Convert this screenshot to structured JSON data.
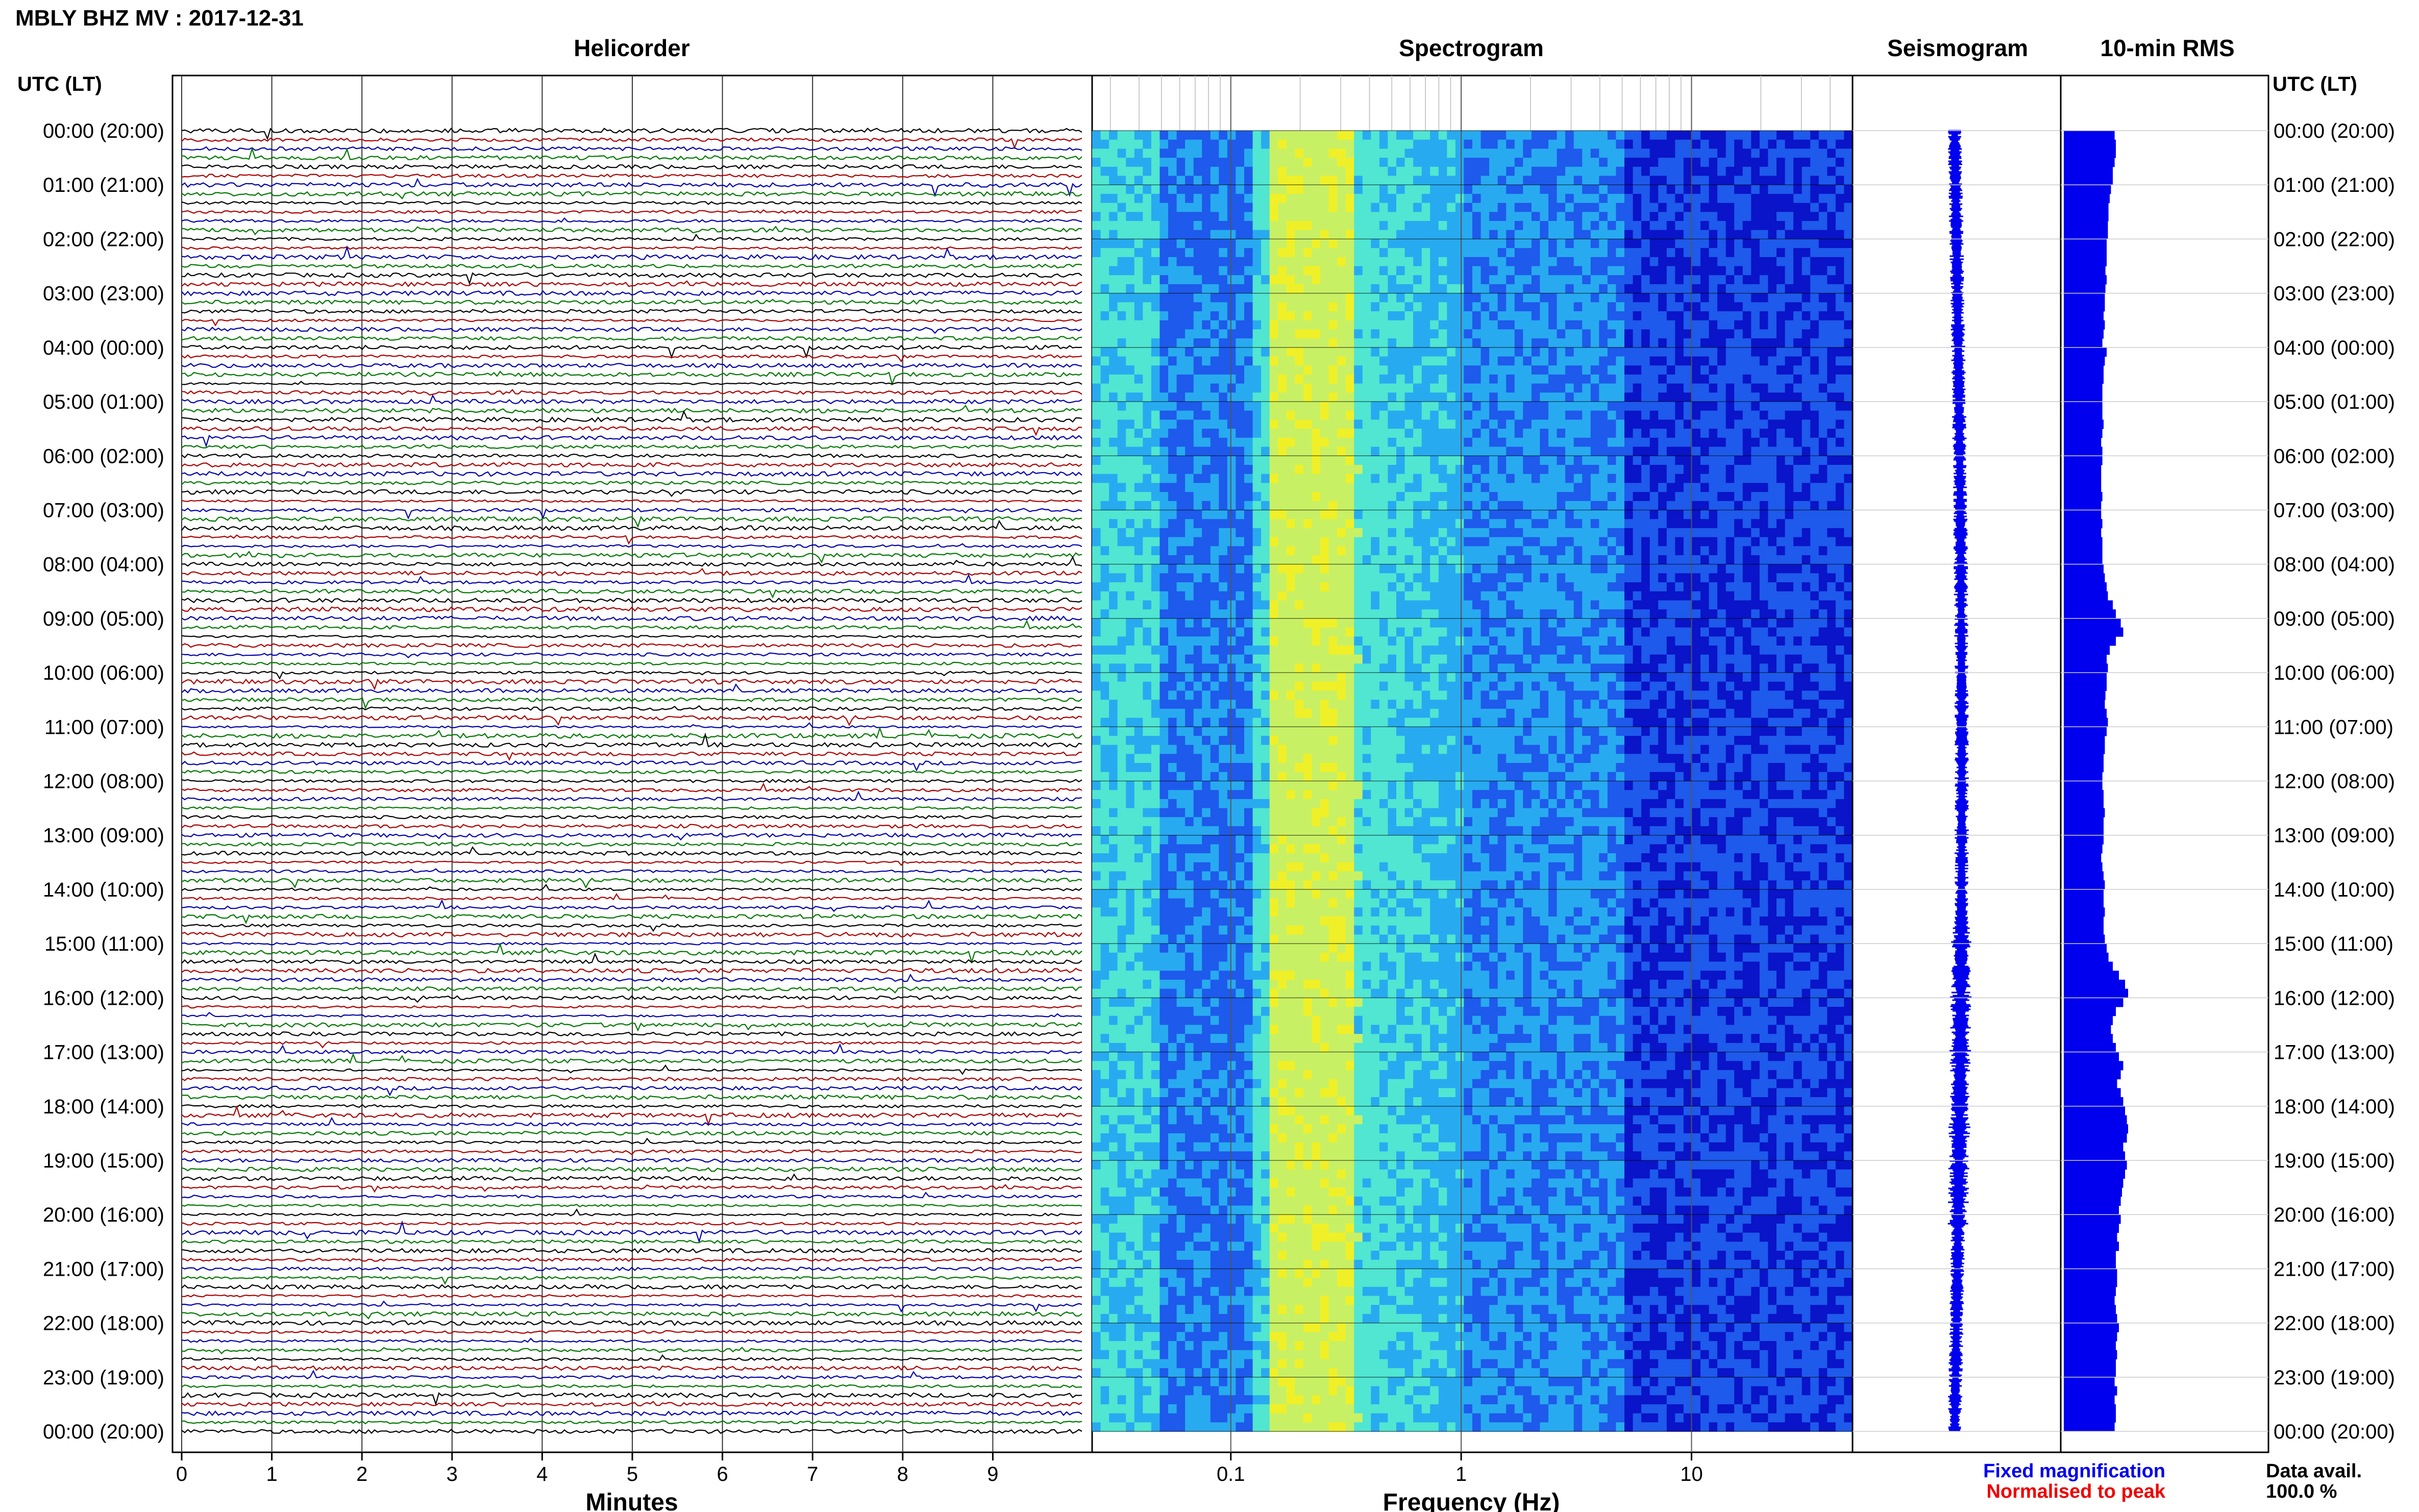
{
  "page": {
    "title": "MBLY BHZ MV : 2017-12-31",
    "utc_label_left": "UTC (LT)",
    "utc_label_right": "UTC (LT)",
    "legend_fixed": "Fixed magnification",
    "legend_normalised": "Normalised to peak",
    "data_avail_label": "Data avail.",
    "data_avail_value": "100.0 %",
    "colors": {
      "fixed": "#0000ee",
      "normalised": "#ee0000",
      "trace_cycle": [
        "#000000",
        "#aa0000",
        "#0000aa",
        "#007700"
      ]
    }
  },
  "chart_data": [
    {
      "type": "line",
      "title": "Helicorder",
      "xlabel": "Minutes",
      "x_ticks": [
        0,
        1,
        2,
        3,
        4,
        5,
        6,
        7,
        8,
        9
      ],
      "xlim": [
        0,
        10
      ],
      "time_labels": [
        "00:00 (20:00)",
        "01:00 (21:00)",
        "02:00 (22:00)",
        "03:00 (23:00)",
        "04:00 (00:00)",
        "05:00 (01:00)",
        "06:00 (02:00)",
        "07:00 (03:00)",
        "08:00 (04:00)",
        "09:00 (05:00)",
        "10:00 (06:00)",
        "11:00 (07:00)",
        "12:00 (08:00)",
        "13:00 (09:00)",
        "14:00 (10:00)",
        "15:00 (11:00)",
        "16:00 (12:00)",
        "17:00 (13:00)",
        "18:00 (14:00)",
        "19:00 (15:00)",
        "20:00 (16:00)",
        "21:00 (17:00)",
        "22:00 (18:00)",
        "23:00 (19:00)",
        "00:00 (20:00)"
      ],
      "traces_per_hour": 6,
      "grid": true
    },
    {
      "type": "heatmap",
      "title": "Spectrogram",
      "xlabel": "Frequency (Hz)",
      "x_scale": "log",
      "x_ticks": [
        0.1,
        1,
        10
      ],
      "x_tick_labels": [
        "0.1",
        "1",
        "10"
      ],
      "xlim": [
        0.025,
        50
      ],
      "dominant_band_hz": [
        0.15,
        0.35
      ],
      "colormap": [
        "#0a14c8",
        "#1e5aeb",
        "#28aaf0",
        "#50e6d2",
        "#c8f064",
        "#f0f028"
      ]
    },
    {
      "type": "line",
      "title": "Seismogram",
      "grid": true
    },
    {
      "type": "bar",
      "title": "10-min RMS",
      "orientation": "horizontal",
      "values": [
        0.58,
        0.6,
        0.6,
        0.58,
        0.55,
        0.55,
        0.52,
        0.5,
        0.48,
        0.48,
        0.47,
        0.47,
        0.45,
        0.45,
        0.45,
        0.43,
        0.45,
        0.43,
        0.42,
        0.42,
        0.4,
        0.42,
        0.4,
        0.38,
        0.45,
        0.42,
        0.4,
        0.4,
        0.38,
        0.38,
        0.38,
        0.38,
        0.4,
        0.38,
        0.36,
        0.38,
        0.38,
        0.36,
        0.36,
        0.36,
        0.38,
        0.36,
        0.36,
        0.38,
        0.36,
        0.38,
        0.38,
        0.38,
        0.4,
        0.42,
        0.45,
        0.47,
        0.55,
        0.6,
        0.68,
        0.72,
        0.6,
        0.5,
        0.45,
        0.47,
        0.45,
        0.45,
        0.43,
        0.42,
        0.45,
        0.47,
        0.45,
        0.42,
        0.42,
        0.4,
        0.4,
        0.38,
        0.38,
        0.4,
        0.4,
        0.42,
        0.4,
        0.4,
        0.4,
        0.38,
        0.36,
        0.38,
        0.4,
        0.42,
        0.4,
        0.4,
        0.42,
        0.4,
        0.4,
        0.42,
        0.45,
        0.48,
        0.55,
        0.65,
        0.75,
        0.8,
        0.72,
        0.6,
        0.55,
        0.52,
        0.55,
        0.6,
        0.65,
        0.72,
        0.68,
        0.62,
        0.68,
        0.72,
        0.75,
        0.78,
        0.8,
        0.78,
        0.72,
        0.75,
        0.78,
        0.75,
        0.72,
        0.7,
        0.68,
        0.65,
        0.68,
        0.65,
        0.62,
        0.65,
        0.6,
        0.6,
        0.62,
        0.62,
        0.6,
        0.58,
        0.6,
        0.62,
        0.65,
        0.62,
        0.6,
        0.62,
        0.6,
        0.6,
        0.58,
        0.62,
        0.58,
        0.6,
        0.6,
        0.58
      ],
      "xlim": [
        0,
        1
      ]
    }
  ]
}
